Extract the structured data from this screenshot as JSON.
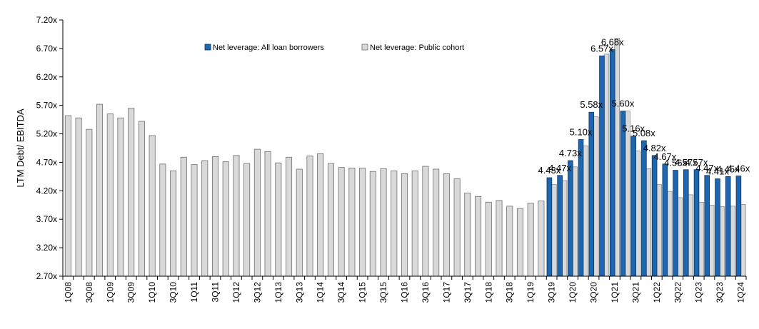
{
  "chart_data": {
    "type": "bar",
    "title": "",
    "xlabel": "",
    "ylabel": "LTM Debt/ EBITDA",
    "ylim": [
      2.7,
      7.2
    ],
    "yticks": [
      "2.70x",
      "3.20x",
      "3.70x",
      "4.20x",
      "4.70x",
      "5.20x",
      "5.70x",
      "6.20x",
      "6.70x",
      "7.20x"
    ],
    "grid": false,
    "legend_position": "top-center",
    "colors": {
      "all": "#1f66b0",
      "all_stroke": "#0b3560",
      "public": "#d9d9d9",
      "public_stroke": "#6e6e6e"
    },
    "categories": [
      "1Q08",
      "2Q08",
      "3Q08",
      "4Q08",
      "1Q09",
      "2Q09",
      "3Q09",
      "4Q09",
      "1Q10",
      "2Q10",
      "3Q10",
      "4Q10",
      "1Q11",
      "2Q11",
      "3Q11",
      "4Q11",
      "1Q12",
      "2Q12",
      "3Q12",
      "4Q12",
      "1Q13",
      "2Q13",
      "3Q13",
      "4Q13",
      "1Q14",
      "2Q14",
      "3Q14",
      "4Q14",
      "1Q15",
      "2Q15",
      "3Q15",
      "4Q15",
      "1Q16",
      "2Q16",
      "3Q16",
      "4Q16",
      "1Q17",
      "2Q17",
      "3Q17",
      "4Q17",
      "1Q18",
      "2Q18",
      "3Q18",
      "4Q18",
      "1Q19",
      "2Q19",
      "3Q19",
      "4Q19",
      "1Q20",
      "2Q20",
      "3Q20",
      "4Q20",
      "1Q21",
      "2Q21",
      "3Q21",
      "4Q21",
      "1Q22",
      "2Q22",
      "3Q22",
      "4Q22",
      "1Q23",
      "2Q23",
      "3Q23",
      "4Q23",
      "1Q24"
    ],
    "tick_labels": [
      "1Q08",
      "3Q08",
      "1Q09",
      "3Q09",
      "1Q10",
      "3Q10",
      "1Q11",
      "3Q11",
      "1Q12",
      "3Q12",
      "1Q13",
      "3Q13",
      "1Q14",
      "3Q14",
      "1Q15",
      "3Q15",
      "1Q16",
      "3Q16",
      "1Q17",
      "3Q17",
      "1Q18",
      "3Q18",
      "1Q19",
      "3Q19",
      "1Q20",
      "3Q20",
      "1Q21",
      "3Q21",
      "1Q22",
      "3Q22",
      "1Q23",
      "3Q23",
      "1Q24"
    ],
    "series": [
      {
        "name": "Net leverage: Public cohort",
        "key": "public",
        "values": [
          5.52,
          5.48,
          5.28,
          5.72,
          5.55,
          5.48,
          5.65,
          5.42,
          5.17,
          4.67,
          4.55,
          4.79,
          4.66,
          4.73,
          4.8,
          4.71,
          4.82,
          4.68,
          4.93,
          4.89,
          4.69,
          4.79,
          4.58,
          4.81,
          4.85,
          4.68,
          4.61,
          4.6,
          4.6,
          4.54,
          4.59,
          4.55,
          4.5,
          4.55,
          4.63,
          4.58,
          4.5,
          4.41,
          4.16,
          4.1,
          4.0,
          4.03,
          3.93,
          3.89,
          3.98,
          4.02,
          4.31,
          4.38,
          4.62,
          4.99,
          5.5,
          6.6,
          6.88,
          5.6,
          4.9,
          4.59,
          4.31,
          4.19,
          4.08,
          4.13,
          4.0,
          3.95,
          3.92,
          3.93,
          3.96
        ]
      },
      {
        "name": "Net leverage: All loan borrowers",
        "key": "all",
        "values": [
          null,
          null,
          null,
          null,
          null,
          null,
          null,
          null,
          null,
          null,
          null,
          null,
          null,
          null,
          null,
          null,
          null,
          null,
          null,
          null,
          null,
          null,
          null,
          null,
          null,
          null,
          null,
          null,
          null,
          null,
          null,
          null,
          null,
          null,
          null,
          null,
          null,
          null,
          null,
          null,
          null,
          null,
          null,
          null,
          null,
          null,
          4.43,
          4.47,
          4.73,
          5.1,
          5.58,
          6.57,
          6.68,
          5.6,
          5.16,
          5.08,
          4.82,
          4.67,
          4.56,
          4.57,
          4.57,
          4.47,
          4.41,
          4.45,
          4.46
        ],
        "labels": [
          null,
          null,
          null,
          null,
          null,
          null,
          null,
          null,
          null,
          null,
          null,
          null,
          null,
          null,
          null,
          null,
          null,
          null,
          null,
          null,
          null,
          null,
          null,
          null,
          null,
          null,
          null,
          null,
          null,
          null,
          null,
          null,
          null,
          null,
          null,
          null,
          null,
          null,
          null,
          null,
          null,
          null,
          null,
          null,
          null,
          null,
          "4.43x",
          "4.47x",
          "4.73x",
          "5.10x",
          "5.58x",
          "6.57x",
          "6.68x",
          "5.60x",
          "5.16x",
          "5.08x",
          "4.82x",
          "4.67x",
          "4.56x",
          "4.57x",
          "4.57x",
          "4.47x",
          "4.41x",
          "4.45x",
          "4.46x"
        ]
      }
    ]
  }
}
